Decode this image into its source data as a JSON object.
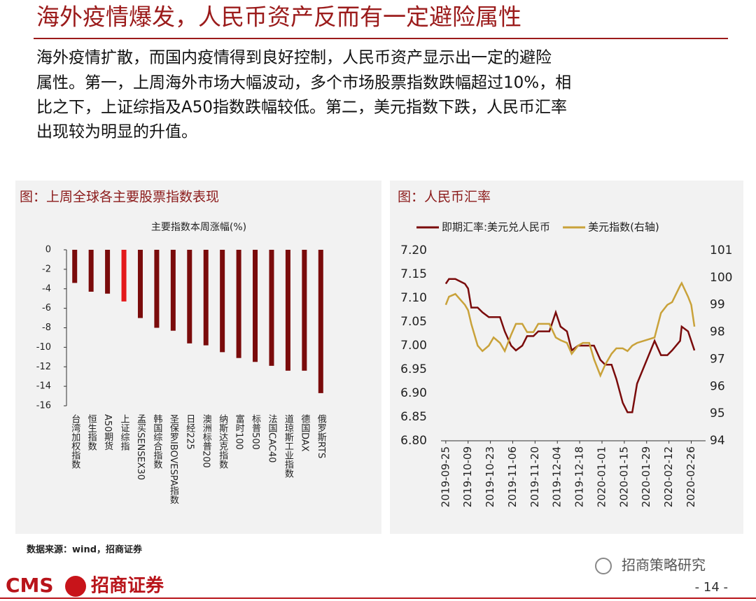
{
  "title": "海外疫情爆发，人民币资产反而有一定避险属性",
  "body": [
    "海外疫情扩散，而国内疫情得到良好控制，人民币资产显示出一定的避险",
    "属性。第一，上周海外市场大幅波动，多个市场股票指数跌幅超过10%，相",
    "比之下，上证综指及A50指数跌幅较低。第二，美元指数下跌，人民币汇率",
    "出现较为明显的升值。"
  ],
  "chart_data": [
    {
      "type": "bar",
      "panel_title": "图：上周全球各主要股票指数表现",
      "title": "主要指数本周涨幅(%)",
      "categories": [
        "台湾加权指数",
        "恒生指数",
        "A50期货",
        "上证综指",
        "孟买SENSEX30",
        "韩国综合指数",
        "圣保罗IBOVESPA指数",
        "日经225",
        "澳洲标普200",
        "纳斯达克指数",
        "富时100",
        "标普500",
        "法国CAC40",
        "道琼斯工业指数",
        "德国DAX",
        "俄罗斯RTS"
      ],
      "values": [
        -3.4,
        -4.3,
        -4.5,
        -5.3,
        -7.0,
        -8.0,
        -8.3,
        -9.6,
        -9.8,
        -10.5,
        -11.1,
        -11.5,
        -11.9,
        -12.4,
        -12.4,
        -14.7
      ],
      "colors": [
        "#7a0b0b",
        "#7a0b0b",
        "#7a0b0b",
        "#e3191b",
        "#7a0b0b",
        "#7a0b0b",
        "#7a0b0b",
        "#7a0b0b",
        "#7a0b0b",
        "#7a0b0b",
        "#7a0b0b",
        "#7a0b0b",
        "#7a0b0b",
        "#7a0b0b",
        "#7a0b0b",
        "#7a0b0b"
      ],
      "ylim": [
        -16,
        0
      ],
      "yticks": [
        0,
        -2,
        -4,
        -6,
        -8,
        -10,
        -12,
        -14,
        -16
      ]
    },
    {
      "type": "line",
      "panel_title": "图：人民币汇率",
      "x": [
        "2019-09-25",
        "2019-09-27",
        "2019-10-01",
        "2019-10-07",
        "2019-10-09",
        "2019-10-11",
        "2019-10-15",
        "2019-10-18",
        "2019-10-22",
        "2019-10-25",
        "2019-10-29",
        "2019-11-01",
        "2019-11-05",
        "2019-11-08",
        "2019-11-12",
        "2019-11-15",
        "2019-11-19",
        "2019-11-22",
        "2019-11-26",
        "2019-11-29",
        "2019-12-03",
        "2019-12-06",
        "2019-12-10",
        "2019-12-13",
        "2019-12-17",
        "2019-12-20",
        "2019-12-24",
        "2019-12-27",
        "2019-12-31",
        "2020-01-03",
        "2020-01-07",
        "2020-01-10",
        "2020-01-14",
        "2020-01-17",
        "2020-01-20",
        "2020-01-23",
        "2020-02-03",
        "2020-02-07",
        "2020-02-11",
        "2020-02-14",
        "2020-02-19",
        "2020-02-20",
        "2020-02-24",
        "2020-02-26",
        "2020-02-28"
      ],
      "series": [
        {
          "name": "即期汇率:美元兑人民币",
          "color": "#7a0b0b",
          "values": [
            7.13,
            7.14,
            7.14,
            7.13,
            7.12,
            7.08,
            7.08,
            7.07,
            7.06,
            7.06,
            7.06,
            7.03,
            7.0,
            6.99,
            7.0,
            7.02,
            7.02,
            7.03,
            7.03,
            7.03,
            7.07,
            7.04,
            7.03,
            6.99,
            7.0,
            7.0,
            7.0,
            7.0,
            6.97,
            6.96,
            6.96,
            6.93,
            6.88,
            6.86,
            6.86,
            6.92,
            7.01,
            6.98,
            6.98,
            6.99,
            7.01,
            7.04,
            7.03,
            7.01,
            6.99
          ]
        },
        {
          "name": "美元指数(右轴)",
          "color": "#c9a23a",
          "axis": "y2",
          "values": [
            99.0,
            99.3,
            99.4,
            99.0,
            98.8,
            98.3,
            97.5,
            97.3,
            97.5,
            97.8,
            97.6,
            97.3,
            97.9,
            98.3,
            98.3,
            98.0,
            98.0,
            98.3,
            98.3,
            98.3,
            97.8,
            97.7,
            97.6,
            97.2,
            97.5,
            97.6,
            97.6,
            97.0,
            96.4,
            96.8,
            97.2,
            97.4,
            97.4,
            97.3,
            97.5,
            97.6,
            97.8,
            98.7,
            99.0,
            99.1,
            99.7,
            99.8,
            99.3,
            99.0,
            98.2
          ]
        }
      ],
      "xlim": [
        "2019-09-22",
        "2020-03-06"
      ],
      "xticks": [
        "2019-09-25",
        "2019-10-09",
        "2019-10-23",
        "2019-11-06",
        "2019-11-20",
        "2019-12-04",
        "2019-12-18",
        "2020-01-01",
        "2020-01-15",
        "2020-01-29",
        "2020-02-12",
        "2020-02-26"
      ],
      "ylim": [
        6.8,
        7.2
      ],
      "yticks": [
        {
          "value": 6.8,
          "label": "6.80"
        },
        {
          "value": 6.85,
          "label": "6.85"
        },
        {
          "value": 6.9,
          "label": "6.90"
        },
        {
          "value": 6.95,
          "label": "6.95"
        },
        {
          "value": 7.0,
          "label": "7.00"
        },
        {
          "value": 7.05,
          "label": "7.05"
        },
        {
          "value": 7.1,
          "label": "7.10"
        },
        {
          "value": 7.15,
          "label": "7.15"
        },
        {
          "value": 7.2,
          "label": "7.20"
        }
      ],
      "y2lim": [
        94,
        101
      ],
      "y2ticks": [
        94,
        95,
        96,
        97,
        98,
        99,
        100,
        101
      ]
    }
  ],
  "source": "数据来源：wind，招商证券",
  "wechat": "招商策略研究",
  "brand": [
    "CMS",
    "招商证券"
  ],
  "page": "- 14 -"
}
